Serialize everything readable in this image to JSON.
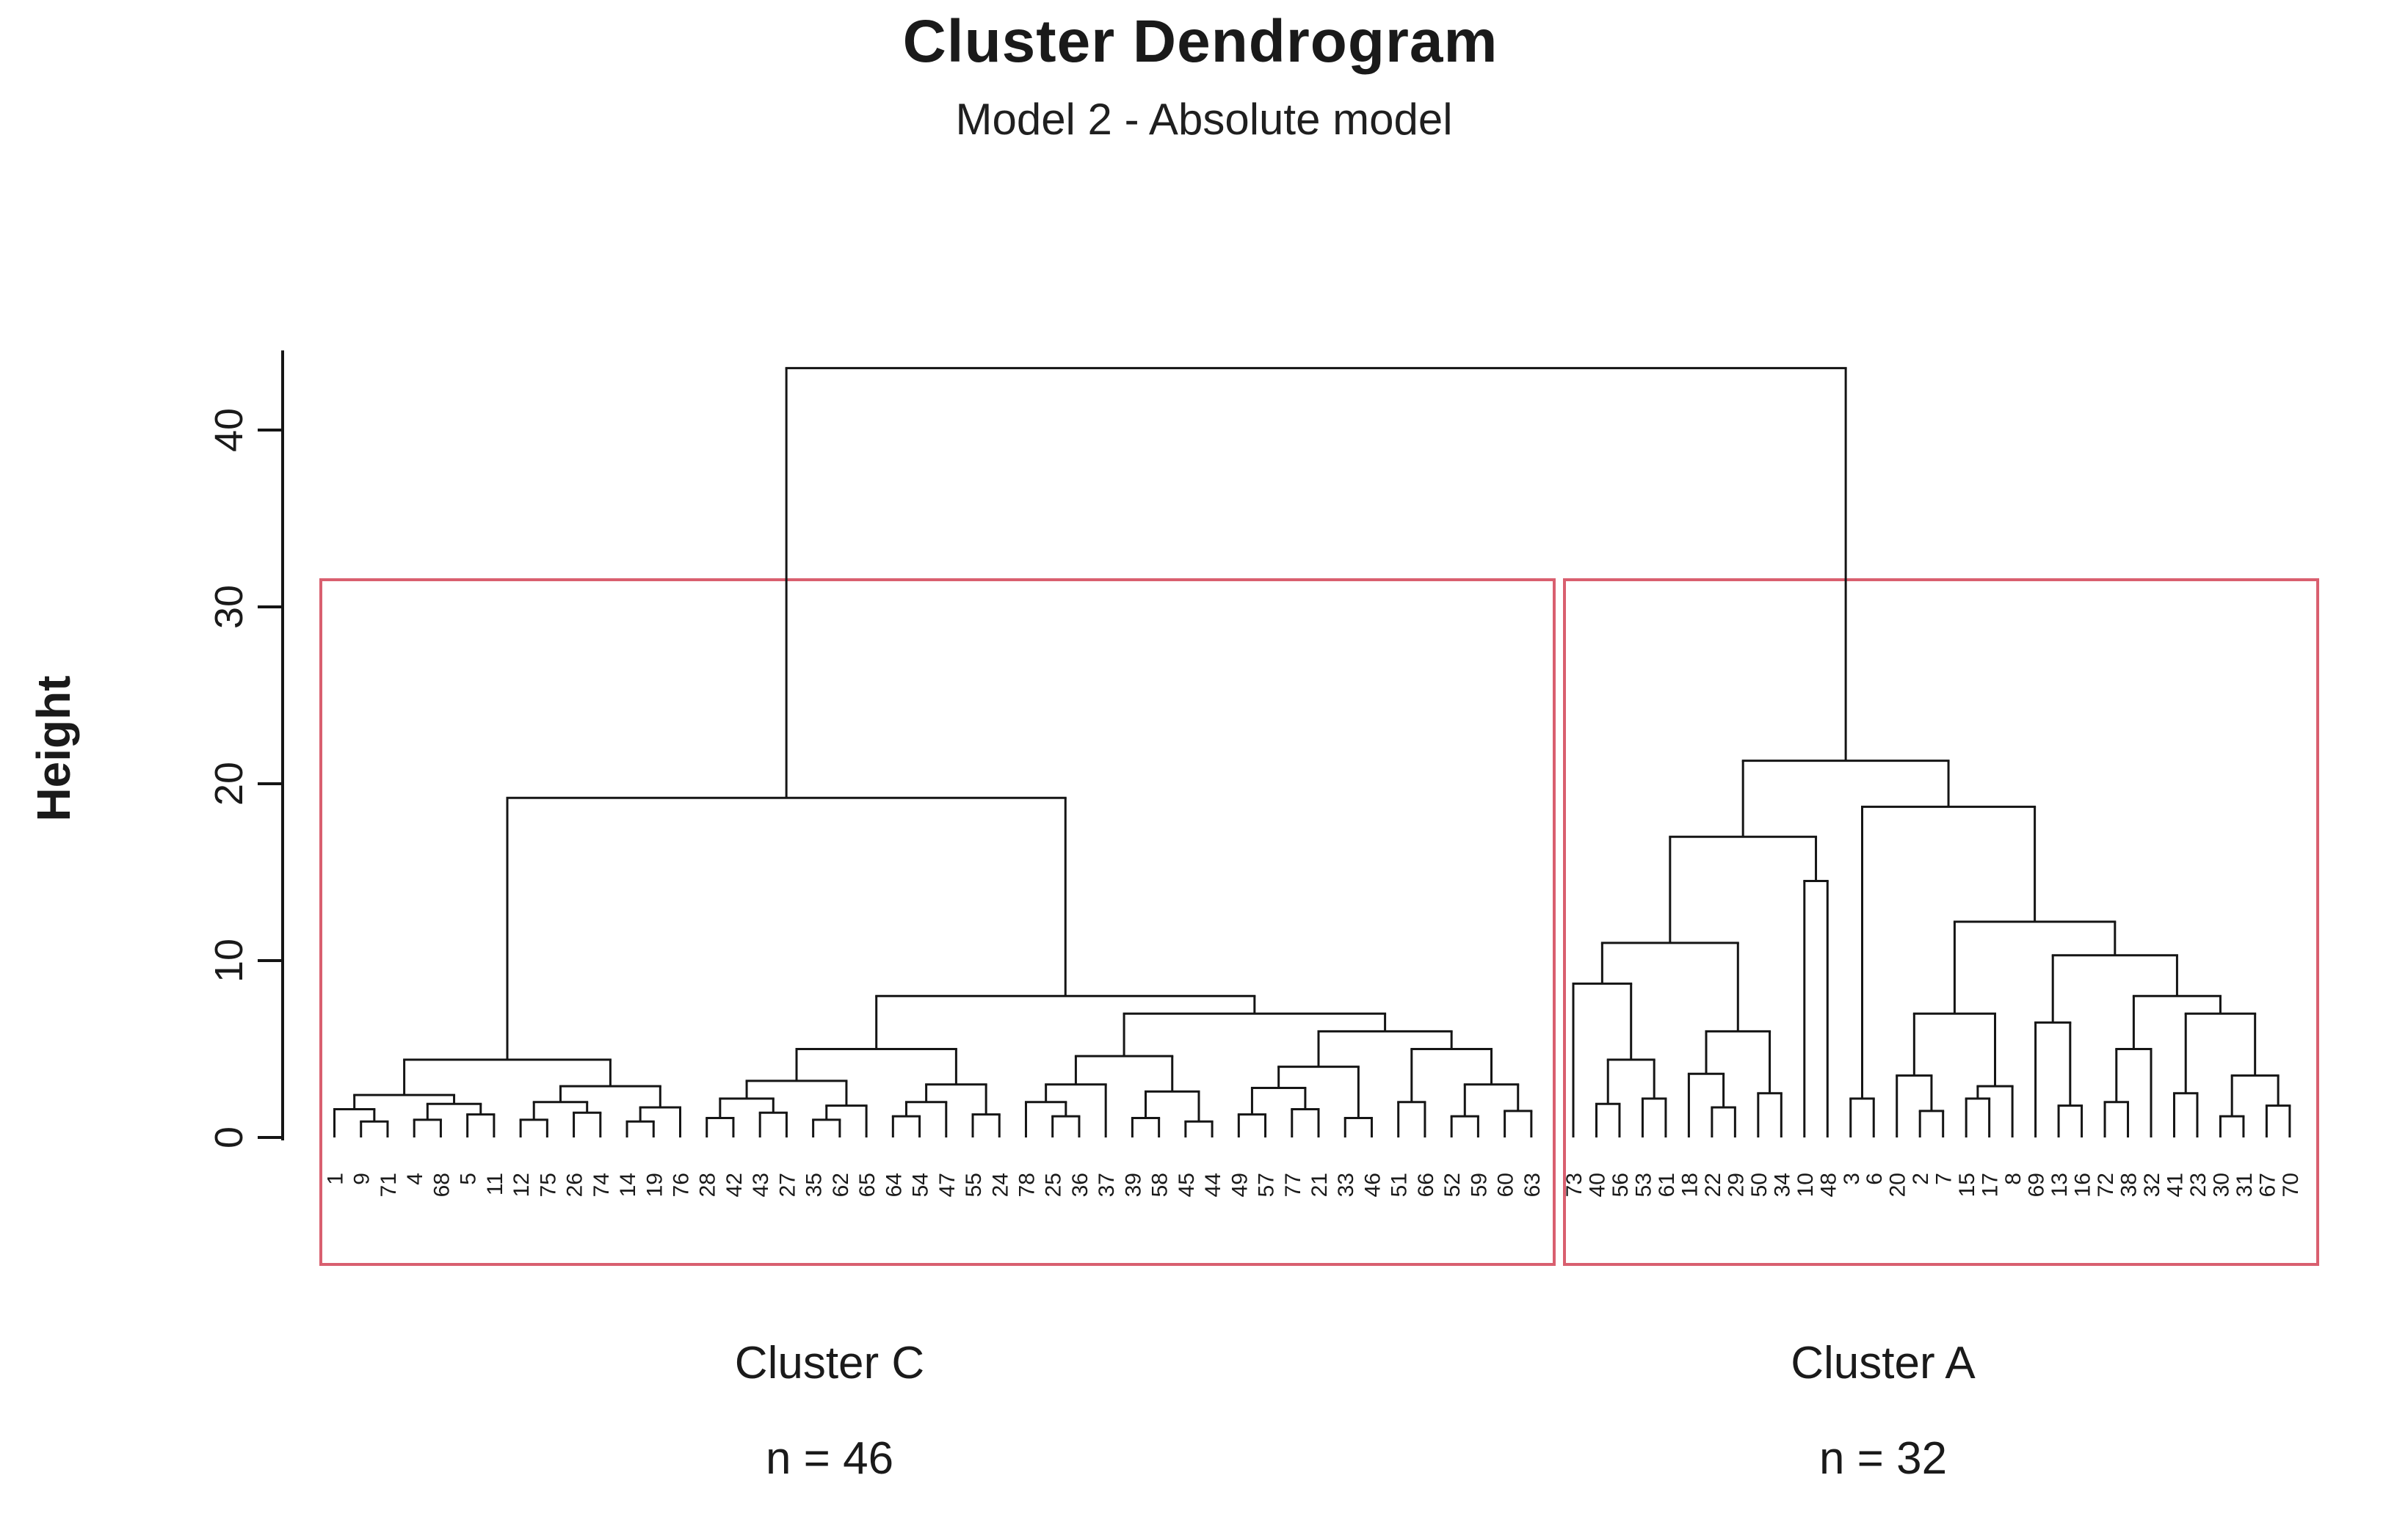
{
  "title": "Cluster Dendrogram",
  "subtitle": "Model 2 - Absolute model",
  "y_axis": {
    "label": "Height",
    "ticks": [
      0,
      10,
      20,
      30,
      40
    ]
  },
  "clusters": [
    {
      "id": "C",
      "name": "Cluster C",
      "n_label": "n = 46",
      "n": 46
    },
    {
      "id": "A",
      "name": "Cluster A",
      "n_label": "n = 32",
      "n": 32
    }
  ],
  "colors": {
    "line": "#151515",
    "box": "#d95f6f",
    "text": "#1a1a1a"
  },
  "chart_data": {
    "type": "dendrogram",
    "title": "Cluster Dendrogram",
    "subtitle": "Model 2 - Absolute model",
    "ylabel": "Height",
    "ylim": [
      0,
      45
    ],
    "yticks": [
      0,
      10,
      20,
      30,
      40
    ],
    "root_height": 43.5,
    "cluster_c_leaves": [
      "1",
      "9",
      "71",
      "4",
      "68",
      "5",
      "11",
      "12",
      "75",
      "26",
      "74",
      "14",
      "19",
      "76",
      "28",
      "42",
      "43",
      "27",
      "35",
      "62",
      "65",
      "64",
      "54",
      "47",
      "55",
      "24",
      "78",
      "25",
      "36",
      "37",
      "39",
      "58",
      "45",
      "44",
      "49",
      "57",
      "77",
      "21",
      "33",
      "46",
      "51",
      "66",
      "52",
      "59",
      "60",
      "63"
    ],
    "cluster_a_leaves": [
      "73",
      "40",
      "56",
      "53",
      "61",
      "18",
      "22",
      "29",
      "50",
      "34",
      "10",
      "48",
      "3",
      "6",
      "20",
      "2",
      "7",
      "15",
      "17",
      "8",
      "69",
      "13",
      "16",
      "72",
      "38",
      "32",
      "41",
      "23",
      "30",
      "31",
      "67",
      "70"
    ],
    "tree": [
      43.5,
      [
        19.2,
        [
          4.4,
          [
            2.4,
            [
              1.6,
              "1",
              [
                0.9,
                "9",
                "71"
              ]
            ],
            [
              1.9,
              [
                1.0,
                "4",
                "68"
              ],
              [
                1.3,
                "5",
                "11"
              ]
            ]
          ],
          [
            2.9,
            [
              2.0,
              [
                1.0,
                "12",
                "75"
              ],
              [
                1.4,
                "26",
                "74"
              ]
            ],
            [
              1.7,
              [
                0.9,
                "14",
                "19"
              ],
              "76"
            ]
          ]
        ],
        [
          8.0,
          [
            5.0,
            [
              3.2,
              [
                2.2,
                [
                  1.1,
                  "28",
                  "42"
                ],
                [
                  1.4,
                  "43",
                  "27"
                ]
              ],
              [
                1.8,
                [
                  1.0,
                  "35",
                  "62"
                ],
                "65"
              ]
            ],
            [
              3.0,
              [
                2.0,
                [
                  1.2,
                  "64",
                  "54"
                ],
                "47"
              ],
              [
                1.3,
                "55",
                "24"
              ]
            ]
          ],
          [
            7.0,
            [
              4.6,
              [
                3.0,
                [
                  2.0,
                  "78",
                  [
                    1.2,
                    "25",
                    "36"
                  ]
                ],
                "37"
              ],
              [
                2.6,
                [
                  1.1,
                  "39",
                  "58"
                ],
                [
                  0.9,
                  "45",
                  "44"
                ]
              ]
            ],
            [
              6.0,
              [
                4.0,
                [
                  2.8,
                  [
                    1.3,
                    "49",
                    "57"
                  ],
                  [
                    1.6,
                    "77",
                    "21"
                  ]
                ],
                [
                  1.1,
                  "33",
                  "46"
                ]
              ],
              [
                5.0,
                [
                  2.0,
                  "51",
                  "66"
                ],
                [
                  3.0,
                  [
                    1.2,
                    "52",
                    "59"
                  ],
                  [
                    1.5,
                    "60",
                    "63"
                  ]
                ]
              ]
            ]
          ]
        ]
      ],
      [
        21.3,
        [
          17.0,
          [
            11.0,
            [
              8.7,
              "73",
              [
                4.4,
                [
                  1.9,
                  "40",
                  "56"
                ],
                [
                  2.2,
                  "53",
                  "61"
                ]
              ]
            ],
            [
              6.0,
              [
                3.6,
                "18",
                [
                  1.7,
                  "22",
                  "29"
                ]
              ],
              [
                2.5,
                "50",
                "34"
              ]
            ]
          ],
          [
            14.5,
            "10",
            "48"
          ]
        ],
        [
          18.7,
          [
            2.2,
            "3",
            "6"
          ],
          [
            12.2,
            [
              7.0,
              [
                3.5,
                "20",
                [
                  1.5,
                  "2",
                  "7"
                ]
              ],
              [
                2.9,
                [
                  2.2,
                  "15",
                  "17"
                ],
                "8"
              ]
            ],
            [
              10.3,
              [
                6.5,
                "69",
                [
                  1.8,
                  "13",
                  "16"
                ]
              ],
              [
                8.0,
                [
                  5.0,
                  [
                    2.0,
                    "72",
                    "38"
                  ],
                  "32"
                ],
                [
                  7.0,
                  [
                    2.5,
                    "41",
                    "23"
                  ],
                  [
                    3.5,
                    [
                      1.2,
                      "30",
                      "31"
                    ],
                    [
                      1.8,
                      "67",
                      "70"
                    ]
                  ]
                ]
              ]
            ]
          ]
        ]
      ]
    ]
  }
}
